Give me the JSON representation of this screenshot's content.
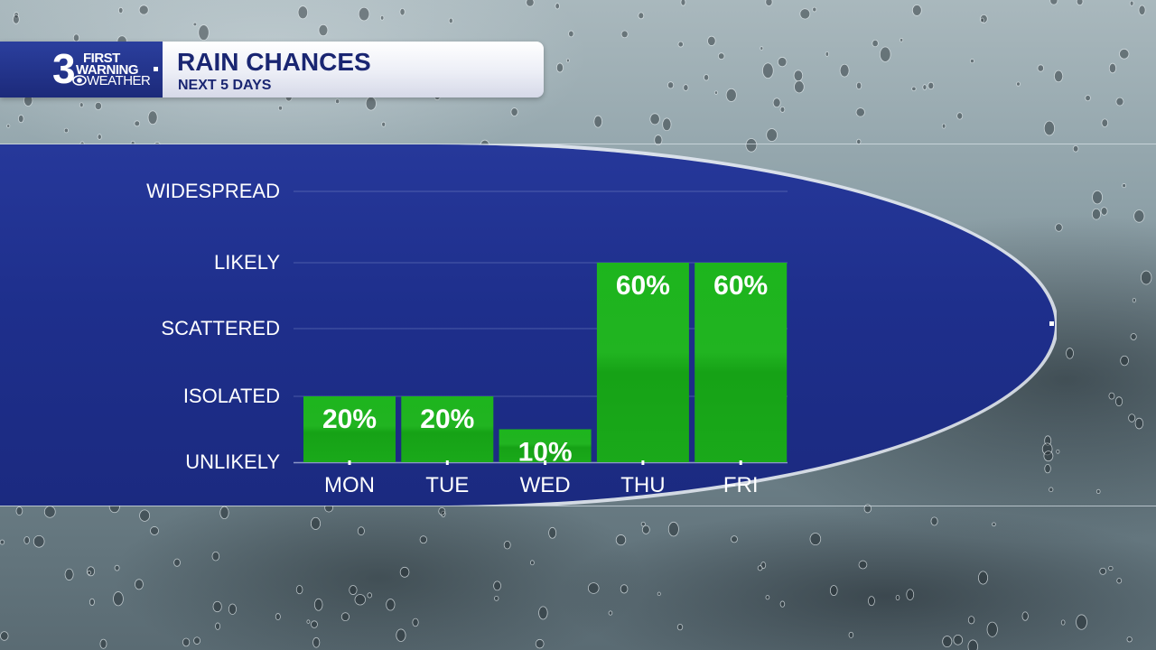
{
  "header": {
    "logo": {
      "number": "3",
      "line1": "FIRST",
      "line2": "WARNING",
      "line3": "WEATHER"
    },
    "title": "RAIN CHANCES",
    "subtitle": "NEXT 5 DAYS"
  },
  "colors": {
    "bar": "#1fae1f",
    "panel": "#1e2f8c",
    "header_text": "#1a2672"
  },
  "chart_data": {
    "type": "bar",
    "categories": [
      "MON",
      "TUE",
      "WED",
      "THU",
      "FRI"
    ],
    "values": [
      20,
      20,
      10,
      60,
      60
    ],
    "value_labels": [
      "20%",
      "20%",
      "10%",
      "60%",
      "60%"
    ],
    "y_levels": [
      {
        "label": "UNLIKELY",
        "value": 0
      },
      {
        "label": "ISOLATED",
        "value": 20
      },
      {
        "label": "SCATTERED",
        "value": 40
      },
      {
        "label": "LIKELY",
        "value": 60
      },
      {
        "label": "WIDESPREAD",
        "value": 80
      }
    ],
    "grid": true
  }
}
